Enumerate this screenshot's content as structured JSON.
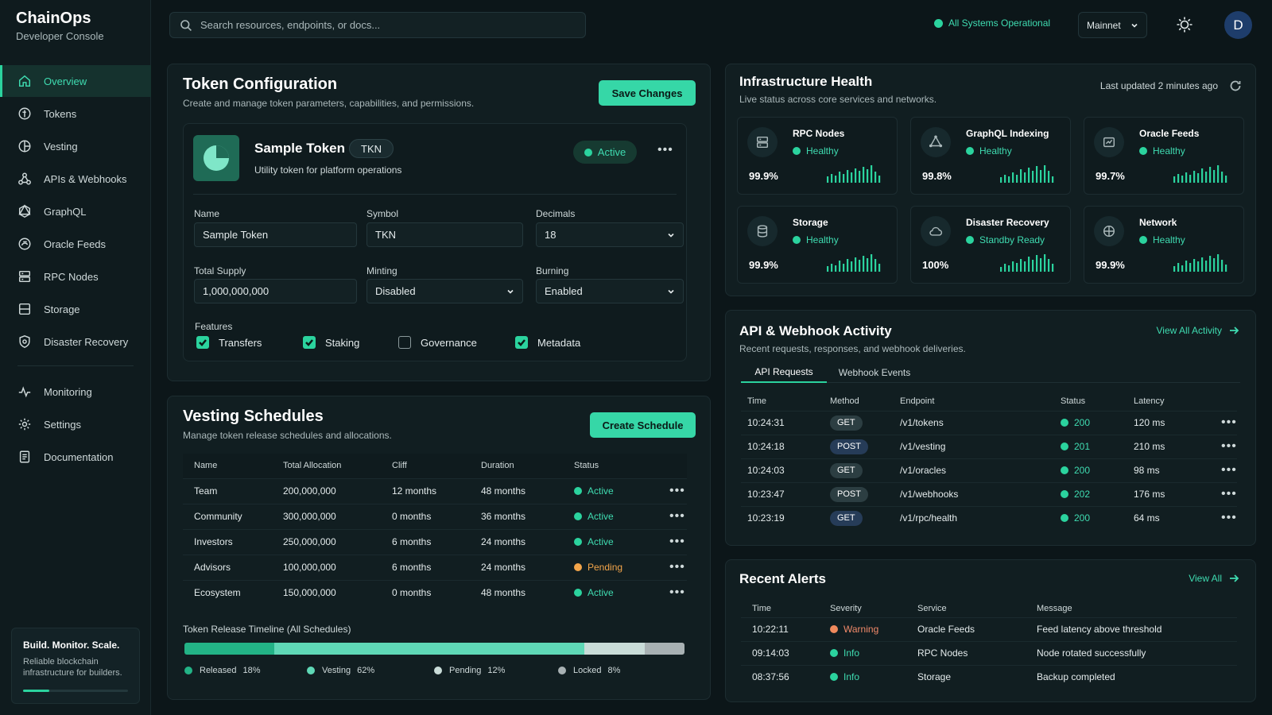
{
  "app": {
    "name": "ChainOps",
    "subtitle": "Developer Console"
  },
  "sidebar": {
    "items": [
      {
        "label": "Overview",
        "icon": "home-icon",
        "active": true
      },
      {
        "label": "Tokens",
        "icon": "token-icon"
      },
      {
        "label": "Vesting",
        "icon": "vesting-icon"
      },
      {
        "label": "APIs & Webhooks",
        "icon": "webhook-icon"
      },
      {
        "label": "GraphQL",
        "icon": "graphql-icon"
      },
      {
        "label": "Oracle Feeds",
        "icon": "oracle-icon"
      },
      {
        "label": "RPC Nodes",
        "icon": "server-icon"
      },
      {
        "label": "Storage",
        "icon": "storage-icon"
      },
      {
        "label": "Disaster Recovery",
        "icon": "shield-icon"
      }
    ],
    "secondary": [
      {
        "label": "Monitoring",
        "icon": "monitoring-icon"
      },
      {
        "label": "Settings",
        "icon": "gear-icon"
      },
      {
        "label": "Documentation",
        "icon": "document-icon"
      }
    ],
    "promo": {
      "title": "Build. Monitor. Scale.",
      "text": "Reliable blockchain infrastructure for builders.",
      "progress": 0.25
    }
  },
  "topbar": {
    "search_placeholder": "Search resources, endpoints, or docs...",
    "system_status": "All Systems Operational",
    "network": "Mainnet",
    "avatar_initial": "D"
  },
  "token_config": {
    "title": "Token Configuration",
    "subtitle": "Create and manage token parameters, capabilities, and permissions.",
    "save_label": "Save Changes",
    "token": {
      "name": "Sample Token",
      "symbol": "TKN",
      "description": "Utility token for platform operations",
      "status": "Active"
    },
    "fields": {
      "name": {
        "label": "Name",
        "value": "Sample Token"
      },
      "symbol": {
        "label": "Symbol",
        "value": "TKN"
      },
      "decimals": {
        "label": "Decimals",
        "value": "18"
      },
      "total_supply": {
        "label": "Total Supply",
        "value": "1,000,000,000"
      },
      "minting": {
        "label": "Minting",
        "value": "Disabled"
      },
      "burning": {
        "label": "Burning",
        "value": "Enabled"
      }
    },
    "features_label": "Features",
    "features": [
      {
        "label": "Transfers",
        "checked": true
      },
      {
        "label": "Staking",
        "checked": true
      },
      {
        "label": "Governance",
        "checked": false
      },
      {
        "label": "Metadata",
        "checked": true
      }
    ]
  },
  "vesting": {
    "title": "Vesting Schedules",
    "subtitle": "Manage token release schedules and allocations.",
    "create_label": "Create Schedule",
    "columns": [
      "Name",
      "Total Allocation",
      "Cliff",
      "Duration",
      "Status"
    ],
    "rows": [
      {
        "name": "Team",
        "allocation": "200,000,000",
        "cliff": "12 months",
        "duration": "48 months",
        "status": "Active"
      },
      {
        "name": "Community",
        "allocation": "300,000,000",
        "cliff": "0 months",
        "duration": "36 months",
        "status": "Active"
      },
      {
        "name": "Investors",
        "allocation": "250,000,000",
        "cliff": "6 months",
        "duration": "24 months",
        "status": "Active"
      },
      {
        "name": "Advisors",
        "allocation": "100,000,000",
        "cliff": "6 months",
        "duration": "24 months",
        "status": "Pending"
      },
      {
        "name": "Ecosystem",
        "allocation": "150,000,000",
        "cliff": "0 months",
        "duration": "48 months",
        "status": "Active"
      }
    ],
    "timeline_label": "Token Release Timeline (All Schedules)",
    "timeline": [
      {
        "label": "Released",
        "pct": "18%",
        "value": 18,
        "color": "#23b386"
      },
      {
        "label": "Vesting",
        "pct": "62%",
        "value": 62,
        "color": "#5fd8b6"
      },
      {
        "label": "Pending",
        "pct": "12%",
        "value": 12,
        "color": "#c9dcd8"
      },
      {
        "label": "Locked",
        "pct": "8%",
        "value": 8,
        "color": "#a8b1b3"
      }
    ]
  },
  "infra": {
    "title": "Infrastructure Health",
    "subtitle": "Live status across core services and networks.",
    "last_updated": "Last updated 2 minutes ago",
    "services": [
      {
        "name": "RPC Nodes",
        "status": "Healthy",
        "uptime": "99.9%",
        "icon": "server-icon"
      },
      {
        "name": "GraphQL Indexing",
        "status": "Healthy",
        "uptime": "99.8%",
        "icon": "graphql-icon"
      },
      {
        "name": "Oracle Feeds",
        "status": "Healthy",
        "uptime": "99.7%",
        "icon": "oracle-icon"
      },
      {
        "name": "Storage",
        "status": "Healthy",
        "uptime": "99.9%",
        "icon": "database-icon"
      },
      {
        "name": "Disaster Recovery",
        "status": "Standby Ready",
        "uptime": "100%",
        "icon": "cloud-icon"
      },
      {
        "name": "Network",
        "status": "Healthy",
        "uptime": "99.9%",
        "icon": "network-icon"
      }
    ]
  },
  "activity": {
    "title": "API & Webhook Activity",
    "subtitle": "Recent requests, responses, and webhook deliveries.",
    "view_all": "View All Activity",
    "tabs": [
      "API Requests",
      "Webhook Events"
    ],
    "columns": [
      "Time",
      "Method",
      "Endpoint",
      "Status",
      "Latency"
    ],
    "rows": [
      {
        "time": "10:24:31",
        "method": "GET",
        "endpoint": "/v1/tokens",
        "status": "200",
        "latency": "120 ms"
      },
      {
        "time": "10:24:18",
        "method": "POST",
        "endpoint": "/v1/vesting",
        "status": "201",
        "latency": "210 ms"
      },
      {
        "time": "10:24:03",
        "method": "GET",
        "endpoint": "/v1/oracles",
        "status": "200",
        "latency": "98 ms"
      },
      {
        "time": "10:23:47",
        "method": "POST",
        "endpoint": "/v1/webhooks",
        "status": "202",
        "latency": "176 ms"
      },
      {
        "time": "10:23:19",
        "method": "GET",
        "endpoint": "/v1/rpc/health",
        "status": "200",
        "latency": "64 ms"
      }
    ]
  },
  "alerts": {
    "title": "Recent Alerts",
    "view_all": "View All",
    "columns": [
      "Time",
      "Severity",
      "Service",
      "Message"
    ],
    "rows": [
      {
        "time": "10:22:11",
        "severity": "Warning",
        "service": "Oracle Feeds",
        "message": "Feed latency above threshold"
      },
      {
        "time": "09:14:03",
        "severity": "Info",
        "service": "RPC Nodes",
        "message": "Node rotated successfully"
      },
      {
        "time": "08:37:56",
        "severity": "Info",
        "service": "Storage",
        "message": "Backup completed"
      }
    ]
  },
  "colors": {
    "accent": "#2bd39e",
    "healthy": "#2bd39e",
    "warning": "#f3a54a",
    "warning_text": "#f28a6a",
    "pending": "#f3a54a"
  }
}
